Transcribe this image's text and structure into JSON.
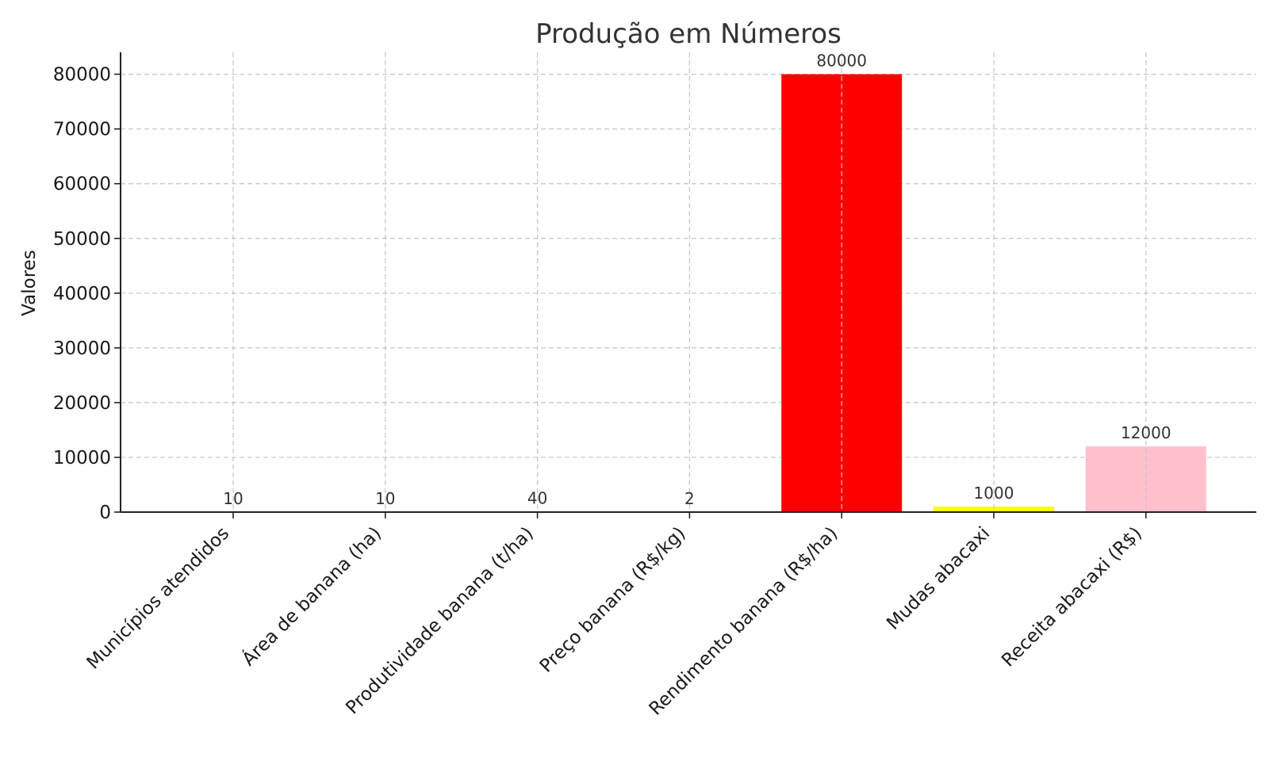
{
  "chart_data": {
    "type": "bar",
    "title": "Produção em Números",
    "xlabel": "",
    "ylabel": "Valores",
    "ylim": [
      0,
      84000
    ],
    "yticks": [
      0,
      10000,
      20000,
      30000,
      40000,
      50000,
      60000,
      70000,
      80000
    ],
    "grid": true,
    "categories": [
      "Municípios atendidos",
      "Área de banana (ha)",
      "Produtividade banana (t/ha)",
      "Preço banana (R$/kg)",
      "Rendimento banana (R$/ha)",
      "Mudas abacaxi",
      "Receita abacaxi (R$)"
    ],
    "values": [
      10,
      10,
      40,
      2,
      80000,
      1000,
      12000
    ],
    "colors": [
      "#008000",
      "#008000",
      "#ffff00",
      "#ffff00",
      "#ff0000",
      "#ffff00",
      "#ffc0cb"
    ]
  }
}
